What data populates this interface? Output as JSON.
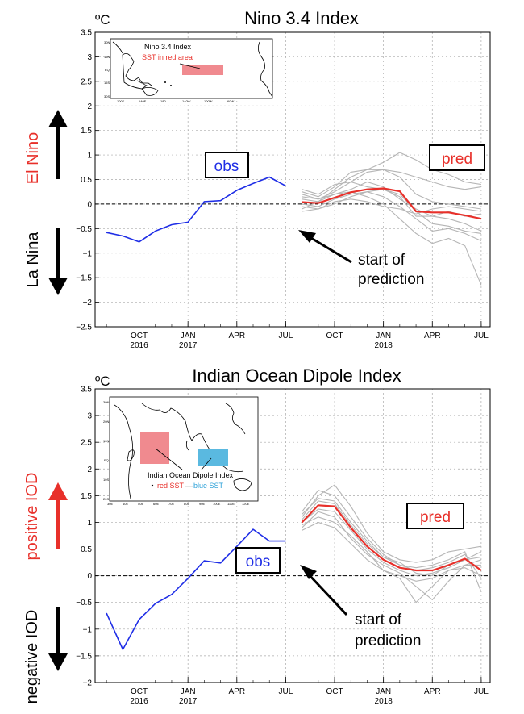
{
  "colors": {
    "obs": "#1f2ee6",
    "pred_mean": "#e8302a",
    "members": "#b5b5b5",
    "red_region": "#f08a8f",
    "blue_region": "#5ab9e0",
    "text_red": "#e8302a",
    "text_blue": "#1f2ee6"
  },
  "icons": {
    "up_arrow": "arrow-up-icon",
    "down_arrow": "arrow-down-icon"
  },
  "chart_data": [
    {
      "type": "line",
      "title": "Nino 3.4 Index",
      "unit": "ºC",
      "ylim": [
        -2.5,
        3.5
      ],
      "yticks": [
        "3.5",
        "3",
        "2.5",
        "2",
        "1.5",
        "1",
        "0.5",
        "0",
        "−0.5",
        "−1",
        "−1.5",
        "−2",
        "−2.5"
      ],
      "xtick_labels": [
        {
          "month": "OCT",
          "year": "2016"
        },
        {
          "month": "JAN",
          "year": "2017"
        },
        {
          "month": "APR",
          "year": ""
        },
        {
          "month": "JUL",
          "year": ""
        },
        {
          "month": "OCT",
          "year": ""
        },
        {
          "month": "JAN",
          "year": "2018"
        },
        {
          "month": "APR",
          "year": ""
        },
        {
          "month": "JUL",
          "year": ""
        }
      ],
      "grid": true,
      "legend": "none",
      "up_label": "El Nino",
      "down_label": "La Nina",
      "obs_label": "obs",
      "pred_label": "pred",
      "annotation": [
        "start of",
        "prediction"
      ],
      "inset": {
        "title": "Nino 3.4 Index",
        "note": "SST in red area"
      },
      "series": [
        {
          "name": "obs",
          "x": [
            "2016-08",
            "2016-09",
            "2016-10",
            "2016-11",
            "2016-12",
            "2017-01",
            "2017-02",
            "2017-03",
            "2017-04",
            "2017-05",
            "2017-06",
            "2017-07"
          ],
          "values": [
            -0.58,
            -0.65,
            -0.77,
            -0.55,
            -0.42,
            -0.37,
            0.05,
            0.07,
            0.28,
            0.42,
            0.55,
            0.37
          ]
        },
        {
          "name": "pred",
          "x": [
            "2017-08",
            "2017-09",
            "2017-10",
            "2017-11",
            "2017-12",
            "2018-01",
            "2018-02",
            "2018-03",
            "2018-04",
            "2018-05",
            "2018-06",
            "2018-07"
          ],
          "values": [
            0.04,
            0.02,
            0.13,
            0.24,
            0.3,
            0.32,
            0.26,
            -0.15,
            -0.17,
            -0.17,
            -0.23,
            -0.3
          ]
        }
      ],
      "members": [
        [
          0.1,
          0.05,
          0.3,
          0.55,
          0.7,
          0.85,
          1.05,
          0.9,
          0.7,
          0.6,
          0.45,
          0.4
        ],
        [
          0.2,
          0.1,
          0.25,
          0.45,
          0.65,
          0.7,
          0.65,
          0.55,
          0.45,
          0.35,
          0.3,
          0.35
        ],
        [
          0.25,
          0.15,
          0.35,
          0.65,
          0.7,
          0.7,
          0.55,
          0.2,
          0.05,
          0.0,
          -0.05,
          -0.1
        ],
        [
          0.0,
          -0.05,
          0.1,
          0.2,
          0.25,
          0.15,
          -0.05,
          -0.3,
          -0.55,
          -0.5,
          -0.6,
          -0.75
        ],
        [
          -0.1,
          0.05,
          0.2,
          0.25,
          0.15,
          0.0,
          -0.3,
          -0.6,
          -0.8,
          -0.7,
          -0.85,
          -1.65
        ],
        [
          0.3,
          0.2,
          0.4,
          0.45,
          0.35,
          0.3,
          0.15,
          -0.25,
          -0.25,
          -0.15,
          -0.25,
          -0.2
        ],
        [
          -0.05,
          -0.1,
          0.0,
          0.15,
          0.25,
          0.3,
          0.2,
          -0.15,
          -0.4,
          -0.45,
          -0.55,
          -0.6
        ],
        [
          0.15,
          0.1,
          0.2,
          0.3,
          0.45,
          0.35,
          0.1,
          -0.1,
          -0.25,
          -0.3,
          -0.4,
          -0.55
        ],
        [
          -0.15,
          -0.1,
          0.05,
          0.1,
          0.05,
          -0.05,
          -0.1,
          -0.2,
          -0.1,
          -0.05,
          -0.1,
          -0.15
        ]
      ]
    },
    {
      "type": "line",
      "title": "Indian Ocean Dipole Index",
      "unit": "ºC",
      "ylim": [
        -2,
        3.5
      ],
      "yticks": [
        "3.5",
        "3",
        "2.5",
        "2",
        "1.5",
        "1",
        "0.5",
        "0",
        "−0.5",
        "−1",
        "−1.5",
        "−2"
      ],
      "xtick_labels": [
        {
          "month": "OCT",
          "year": "2016"
        },
        {
          "month": "JAN",
          "year": "2017"
        },
        {
          "month": "APR",
          "year": ""
        },
        {
          "month": "JUL",
          "year": ""
        },
        {
          "month": "OCT",
          "year": ""
        },
        {
          "month": "JAN",
          "year": "2018"
        },
        {
          "month": "APR",
          "year": ""
        },
        {
          "month": "JUL",
          "year": ""
        }
      ],
      "grid": true,
      "legend": "none",
      "up_label": "positive IOD",
      "down_label": "negative IOD",
      "obs_label": "obs",
      "pred_label": "pred",
      "annotation": [
        "start of",
        "prediction"
      ],
      "inset": {
        "title": "Indian Ocean Dipole Index",
        "note_red": "red SST",
        "note_sep": "—",
        "note_blue": "blue SST"
      },
      "series": [
        {
          "name": "obs",
          "x": [
            "2016-08",
            "2016-09",
            "2016-10",
            "2016-11",
            "2016-12",
            "2017-01",
            "2017-02",
            "2017-03",
            "2017-04",
            "2017-05",
            "2017-06",
            "2017-07"
          ],
          "values": [
            -0.7,
            -1.38,
            -0.82,
            -0.52,
            -0.35,
            -0.05,
            0.28,
            0.24,
            0.55,
            0.87,
            0.65,
            0.65
          ]
        },
        {
          "name": "pred",
          "x": [
            "2017-08",
            "2017-09",
            "2017-10",
            "2017-11",
            "2017-12",
            "2018-01",
            "2018-02",
            "2018-03",
            "2018-04",
            "2018-05",
            "2018-06",
            "2018-07"
          ],
          "values": [
            1.0,
            1.32,
            1.3,
            0.9,
            0.55,
            0.3,
            0.15,
            0.1,
            0.1,
            0.2,
            0.32,
            0.1
          ]
        }
      ],
      "members": [
        [
          1.1,
          1.5,
          1.7,
          1.3,
          0.8,
          0.45,
          0.3,
          0.25,
          0.3,
          0.45,
          0.5,
          0.55
        ],
        [
          0.9,
          1.2,
          1.1,
          0.7,
          0.4,
          0.2,
          0.05,
          -0.2,
          -0.45,
          -0.1,
          0.2,
          0.2
        ],
        [
          1.2,
          1.6,
          1.5,
          1.1,
          0.7,
          0.4,
          0.2,
          0.1,
          0.15,
          0.25,
          0.4,
          -0.05
        ],
        [
          1.05,
          1.4,
          1.35,
          0.95,
          0.6,
          0.35,
          0.25,
          0.05,
          0.0,
          0.2,
          0.3,
          0.35
        ],
        [
          0.95,
          1.1,
          1.0,
          0.75,
          0.45,
          0.1,
          -0.05,
          -0.5,
          -0.2,
          0.1,
          0.2,
          0.3
        ],
        [
          1.0,
          1.25,
          1.2,
          0.85,
          0.5,
          0.25,
          0.1,
          0.0,
          0.05,
          0.15,
          0.3,
          0.45
        ],
        [
          1.15,
          1.45,
          1.4,
          1.0,
          0.65,
          0.35,
          0.2,
          0.15,
          0.2,
          0.3,
          0.45,
          -0.3
        ],
        [
          0.85,
          1.0,
          0.9,
          0.6,
          0.3,
          0.1,
          0.0,
          -0.1,
          -0.05,
          0.1,
          0.15,
          0.0
        ]
      ]
    }
  ]
}
